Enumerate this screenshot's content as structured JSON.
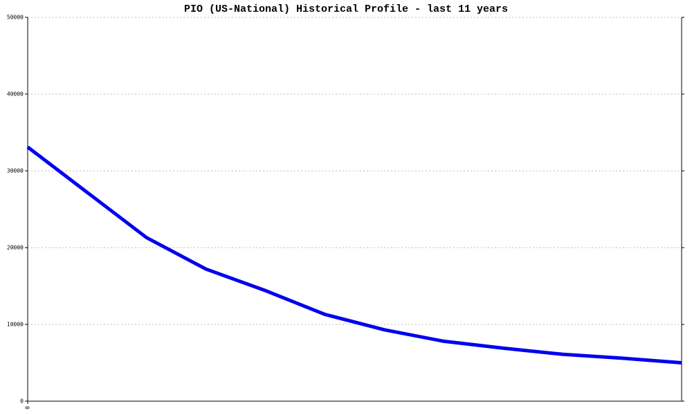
{
  "chart_data": {
    "type": "line",
    "title": "PIO (US-National) Historical Profile - last 11 years",
    "x": [
      0,
      1,
      2,
      3,
      4,
      5,
      6,
      7,
      8,
      9,
      10,
      11
    ],
    "series": [
      {
        "color": "#0000ee",
        "values": [
          33100,
          27200,
          21300,
          17200,
          14400,
          11300,
          9300,
          7800,
          6900,
          6100,
          5600,
          5000
        ]
      }
    ],
    "xlim": [
      0,
      11
    ],
    "xticks": [
      0
    ],
    "ylim": [
      0,
      50000
    ],
    "yticks": [
      0,
      10000,
      20000,
      30000,
      40000,
      50000
    ],
    "grid": true
  }
}
